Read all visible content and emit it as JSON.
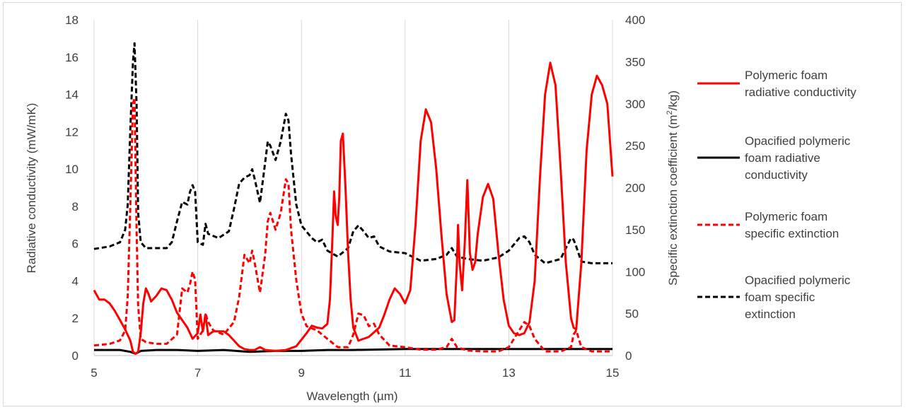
{
  "chart_data": {
    "type": "line",
    "title": "",
    "xlabel": "Wavelength (µm)",
    "ylabel_left": "Radiative conductivity (mW/mK)",
    "ylabel_right_prefix": "Specific extinction coefficient (m",
    "ylabel_right_sup": "2",
    "ylabel_right_suffix": "/kg)",
    "xlim": [
      5,
      15
    ],
    "ylim_left": [
      0,
      18
    ],
    "ylim_right": [
      0,
      400
    ],
    "x_ticks": [
      "5",
      "7",
      "9",
      "11",
      "13",
      "15"
    ],
    "y_left_ticks": [
      "0",
      "2",
      "4",
      "6",
      "8",
      "10",
      "12",
      "14",
      "16",
      "18"
    ],
    "y_right_ticks": [
      "0",
      "50",
      "100",
      "150",
      "200",
      "250",
      "300",
      "350",
      "400"
    ],
    "grid": "vertical",
    "legend_position": "right",
    "series": [
      {
        "name_lines": [
          "Polymeric foam",
          "radiative conductivity"
        ],
        "axis": "left",
        "color": "#ff0000",
        "dash": "solid",
        "points": [
          [
            5,
            3.5
          ],
          [
            5.1,
            3.0
          ],
          [
            5.2,
            3.0
          ],
          [
            5.3,
            2.8
          ],
          [
            5.4,
            2.4
          ],
          [
            5.5,
            1.9
          ],
          [
            5.6,
            1.4
          ],
          [
            5.7,
            0.8
          ],
          [
            5.75,
            0.2
          ],
          [
            5.8,
            0.1
          ],
          [
            5.85,
            0.2
          ],
          [
            5.9,
            1.2
          ],
          [
            5.95,
            2.8
          ],
          [
            6.0,
            3.6
          ],
          [
            6.05,
            3.3
          ],
          [
            6.1,
            2.9
          ],
          [
            6.2,
            3.2
          ],
          [
            6.3,
            3.6
          ],
          [
            6.4,
            3.5
          ],
          [
            6.5,
            3.0
          ],
          [
            6.6,
            2.3
          ],
          [
            6.7,
            1.9
          ],
          [
            6.8,
            1.5
          ],
          [
            6.9,
            0.9
          ],
          [
            7.0,
            1.2
          ],
          [
            7.05,
            2.2
          ],
          [
            7.1,
            1.3
          ],
          [
            7.15,
            2.2
          ],
          [
            7.2,
            1.1
          ],
          [
            7.3,
            1.3
          ],
          [
            7.4,
            1.3
          ],
          [
            7.5,
            1.3
          ],
          [
            7.6,
            1.1
          ],
          [
            7.7,
            0.8
          ],
          [
            7.8,
            0.5
          ],
          [
            7.9,
            0.35
          ],
          [
            8.0,
            0.3
          ],
          [
            8.1,
            0.3
          ],
          [
            8.2,
            0.45
          ],
          [
            8.3,
            0.3
          ],
          [
            8.5,
            0.25
          ],
          [
            8.7,
            0.3
          ],
          [
            8.9,
            0.5
          ],
          [
            9.1,
            1.2
          ],
          [
            9.2,
            1.6
          ],
          [
            9.3,
            1.5
          ],
          [
            9.4,
            1.45
          ],
          [
            9.5,
            1.7
          ],
          [
            9.55,
            3.0
          ],
          [
            9.6,
            6.5
          ],
          [
            9.63,
            8.8
          ],
          [
            9.66,
            7.5
          ],
          [
            9.7,
            7.0
          ],
          [
            9.73,
            8.5
          ],
          [
            9.76,
            11.5
          ],
          [
            9.8,
            11.9
          ],
          [
            9.85,
            9.0
          ],
          [
            9.9,
            5.5
          ],
          [
            9.95,
            3.0
          ],
          [
            10.0,
            1.5
          ],
          [
            10.1,
            0.8
          ],
          [
            10.3,
            1.0
          ],
          [
            10.5,
            1.5
          ],
          [
            10.6,
            2.2
          ],
          [
            10.7,
            3.0
          ],
          [
            10.8,
            3.6
          ],
          [
            10.9,
            3.3
          ],
          [
            11.0,
            2.8
          ],
          [
            11.1,
            3.5
          ],
          [
            11.2,
            7.0
          ],
          [
            11.3,
            11.5
          ],
          [
            11.4,
            13.2
          ],
          [
            11.5,
            12.5
          ],
          [
            11.6,
            10.0
          ],
          [
            11.7,
            6.5
          ],
          [
            11.8,
            3.3
          ],
          [
            11.9,
            1.8
          ],
          [
            11.95,
            1.9
          ],
          [
            12.0,
            5.0
          ],
          [
            12.02,
            7.0
          ],
          [
            12.05,
            5.0
          ],
          [
            12.1,
            3.5
          ],
          [
            12.15,
            6.0
          ],
          [
            12.2,
            9.4
          ],
          [
            12.25,
            5.5
          ],
          [
            12.3,
            4.6
          ],
          [
            12.35,
            5.0
          ],
          [
            12.4,
            6.5
          ],
          [
            12.5,
            8.5
          ],
          [
            12.6,
            9.2
          ],
          [
            12.7,
            8.4
          ],
          [
            12.8,
            5.5
          ],
          [
            12.9,
            3.0
          ],
          [
            13.0,
            1.6
          ],
          [
            13.1,
            1.2
          ],
          [
            13.2,
            1.1
          ],
          [
            13.3,
            1.2
          ],
          [
            13.4,
            1.8
          ],
          [
            13.5,
            4.0
          ],
          [
            13.6,
            9.5
          ],
          [
            13.7,
            14.0
          ],
          [
            13.8,
            15.7
          ],
          [
            13.9,
            14.5
          ],
          [
            14.0,
            10.0
          ],
          [
            14.1,
            5.0
          ],
          [
            14.2,
            2.0
          ],
          [
            14.25,
            1.5
          ],
          [
            14.3,
            1.4
          ],
          [
            14.4,
            5.0
          ],
          [
            14.5,
            11.0
          ],
          [
            14.6,
            14.0
          ],
          [
            14.7,
            15.0
          ],
          [
            14.8,
            14.5
          ],
          [
            14.9,
            13.5
          ],
          [
            15.0,
            9.6
          ]
        ]
      },
      {
        "name_lines": [
          "Opacified polymeric",
          "foam radiative",
          "conductivity"
        ],
        "axis": "left",
        "color": "#000000",
        "dash": "solid",
        "points": [
          [
            5,
            0.3
          ],
          [
            5.5,
            0.3
          ],
          [
            5.7,
            0.2
          ],
          [
            5.8,
            0.1
          ],
          [
            5.9,
            0.25
          ],
          [
            6.2,
            0.3
          ],
          [
            6.6,
            0.3
          ],
          [
            7.0,
            0.25
          ],
          [
            7.5,
            0.3
          ],
          [
            8.0,
            0.2
          ],
          [
            8.5,
            0.25
          ],
          [
            9.0,
            0.25
          ],
          [
            9.5,
            0.3
          ],
          [
            10,
            0.3
          ],
          [
            11,
            0.35
          ],
          [
            12,
            0.35
          ],
          [
            13,
            0.35
          ],
          [
            14,
            0.35
          ],
          [
            15,
            0.35
          ]
        ]
      },
      {
        "name_lines": [
          "Polymeric foam",
          "specific extinction"
        ],
        "axis": "right",
        "color": "#ff0000",
        "dash": "dashed",
        "points": [
          [
            5,
            12
          ],
          [
            5.3,
            14
          ],
          [
            5.5,
            18
          ],
          [
            5.6,
            30
          ],
          [
            5.65,
            70
          ],
          [
            5.7,
            180
          ],
          [
            5.75,
            300
          ],
          [
            5.78,
            307
          ],
          [
            5.82,
            150
          ],
          [
            5.85,
            60
          ],
          [
            5.9,
            20
          ],
          [
            6.0,
            16
          ],
          [
            6.2,
            14
          ],
          [
            6.4,
            14
          ],
          [
            6.6,
            25
          ],
          [
            6.7,
            80
          ],
          [
            6.8,
            75
          ],
          [
            6.85,
            85
          ],
          [
            6.9,
            100
          ],
          [
            6.95,
            90
          ],
          [
            7.0,
            20
          ],
          [
            7.1,
            30
          ],
          [
            7.15,
            50
          ],
          [
            7.2,
            40
          ],
          [
            7.3,
            30
          ],
          [
            7.5,
            25
          ],
          [
            7.7,
            40
          ],
          [
            7.8,
            70
          ],
          [
            7.9,
            120
          ],
          [
            8.0,
            110
          ],
          [
            8.05,
            125
          ],
          [
            8.1,
            110
          ],
          [
            8.2,
            75
          ],
          [
            8.3,
            120
          ],
          [
            8.35,
            160
          ],
          [
            8.4,
            170
          ],
          [
            8.5,
            150
          ],
          [
            8.6,
            170
          ],
          [
            8.7,
            210
          ],
          [
            8.75,
            205
          ],
          [
            8.8,
            150
          ],
          [
            8.9,
            90
          ],
          [
            9.0,
            50
          ],
          [
            9.1,
            35
          ],
          [
            9.3,
            30
          ],
          [
            9.5,
            20
          ],
          [
            9.7,
            10
          ],
          [
            9.9,
            10
          ],
          [
            10.0,
            25
          ],
          [
            10.1,
            50
          ],
          [
            10.2,
            48
          ],
          [
            10.3,
            35
          ],
          [
            10.4,
            38
          ],
          [
            10.5,
            25
          ],
          [
            10.7,
            12
          ],
          [
            11.0,
            10
          ],
          [
            11.3,
            7
          ],
          [
            11.6,
            7
          ],
          [
            11.8,
            10
          ],
          [
            11.9,
            20
          ],
          [
            12.0,
            10
          ],
          [
            12.2,
            6
          ],
          [
            12.5,
            5
          ],
          [
            12.8,
            5
          ],
          [
            13.0,
            10
          ],
          [
            13.2,
            30
          ],
          [
            13.3,
            40
          ],
          [
            13.4,
            35
          ],
          [
            13.5,
            20
          ],
          [
            13.7,
            5
          ],
          [
            14.0,
            5
          ],
          [
            14.2,
            10
          ],
          [
            14.25,
            25
          ],
          [
            14.3,
            30
          ],
          [
            14.4,
            10
          ],
          [
            14.6,
            5
          ],
          [
            15.0,
            5
          ]
        ]
      },
      {
        "name_lines": [
          "Opacified polymeric",
          "foam specific",
          "extinction"
        ],
        "axis": "right",
        "color": "#000000",
        "dash": "dashed",
        "points": [
          [
            5,
            127
          ],
          [
            5.3,
            130
          ],
          [
            5.5,
            135
          ],
          [
            5.6,
            150
          ],
          [
            5.65,
            180
          ],
          [
            5.7,
            270
          ],
          [
            5.75,
            350
          ],
          [
            5.78,
            372
          ],
          [
            5.82,
            300
          ],
          [
            5.85,
            170
          ],
          [
            5.9,
            135
          ],
          [
            6.0,
            128
          ],
          [
            6.2,
            128
          ],
          [
            6.4,
            128
          ],
          [
            6.5,
            135
          ],
          [
            6.6,
            160
          ],
          [
            6.7,
            183
          ],
          [
            6.8,
            180
          ],
          [
            6.85,
            195
          ],
          [
            6.9,
            203
          ],
          [
            6.95,
            195
          ],
          [
            7.0,
            135
          ],
          [
            7.1,
            132
          ],
          [
            7.15,
            157
          ],
          [
            7.2,
            145
          ],
          [
            7.4,
            140
          ],
          [
            7.6,
            148
          ],
          [
            7.7,
            175
          ],
          [
            7.8,
            205
          ],
          [
            7.9,
            212
          ],
          [
            8.0,
            215
          ],
          [
            8.05,
            222
          ],
          [
            8.1,
            210
          ],
          [
            8.2,
            182
          ],
          [
            8.3,
            230
          ],
          [
            8.35,
            255
          ],
          [
            8.4,
            250
          ],
          [
            8.5,
            233
          ],
          [
            8.6,
            255
          ],
          [
            8.7,
            288
          ],
          [
            8.75,
            280
          ],
          [
            8.8,
            240
          ],
          [
            8.9,
            180
          ],
          [
            9.0,
            155
          ],
          [
            9.2,
            140
          ],
          [
            9.3,
            135
          ],
          [
            9.4,
            138
          ],
          [
            9.5,
            125
          ],
          [
            9.7,
            118
          ],
          [
            9.9,
            128
          ],
          [
            10.0,
            148
          ],
          [
            10.1,
            155
          ],
          [
            10.2,
            148
          ],
          [
            10.3,
            140
          ],
          [
            10.4,
            142
          ],
          [
            10.5,
            130
          ],
          [
            10.7,
            124
          ],
          [
            11.0,
            122
          ],
          [
            11.3,
            113
          ],
          [
            11.6,
            115
          ],
          [
            11.8,
            120
          ],
          [
            11.9,
            128
          ],
          [
            12.0,
            118
          ],
          [
            12.2,
            115
          ],
          [
            12.5,
            113
          ],
          [
            12.8,
            117
          ],
          [
            13.0,
            125
          ],
          [
            13.2,
            140
          ],
          [
            13.3,
            142
          ],
          [
            13.4,
            135
          ],
          [
            13.5,
            120
          ],
          [
            13.7,
            110
          ],
          [
            14.0,
            115
          ],
          [
            14.1,
            128
          ],
          [
            14.2,
            140
          ],
          [
            14.25,
            138
          ],
          [
            14.3,
            130
          ],
          [
            14.4,
            112
          ],
          [
            14.6,
            110
          ],
          [
            15.0,
            110
          ]
        ]
      }
    ]
  }
}
